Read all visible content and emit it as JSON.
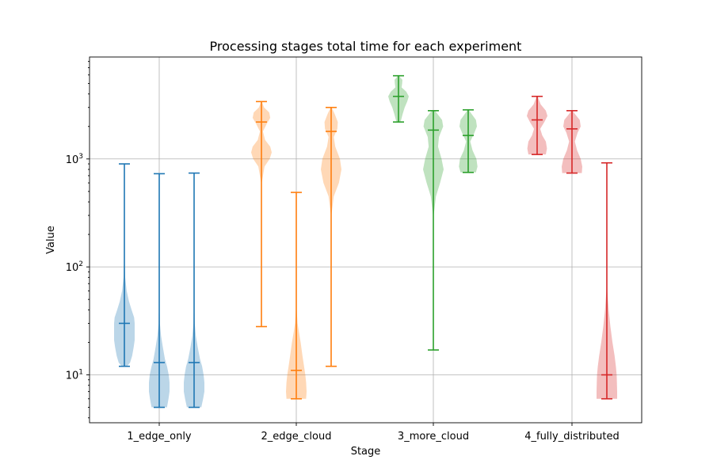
{
  "chart_data": {
    "type": "violin",
    "title": "Processing stages total time for each experiment",
    "xlabel": "Stage",
    "ylabel": "Value",
    "yscale": "log",
    "ylim": [
      3.6,
      8800
    ],
    "grid": true,
    "categories": [
      "1_edge_only",
      "2_edge_cloud",
      "3_more_cloud",
      "4_fully_distributed"
    ],
    "yticks": [
      {
        "value": 10,
        "base": "10",
        "exp": "1"
      },
      {
        "value": 100,
        "base": "10",
        "exp": "2"
      },
      {
        "value": 1000,
        "base": "10",
        "exp": "3"
      }
    ],
    "series": [
      {
        "color": "#1f77b4",
        "violins": [
          {
            "min": 12,
            "median": 30,
            "max": 900,
            "shape": [
              [
                12,
                0.25
              ],
              [
                13,
                0.55
              ],
              [
                15,
                0.75
              ],
              [
                18,
                0.9
              ],
              [
                21,
                1.0
              ],
              [
                25,
                1.0
              ],
              [
                30,
                1.0
              ],
              [
                34,
                0.95
              ],
              [
                40,
                0.7
              ],
              [
                48,
                0.45
              ],
              [
                60,
                0.22
              ],
              [
                80,
                0.08
              ],
              [
                120,
                0.02
              ],
              [
                300,
                0.005
              ],
              [
                900,
                0.0
              ]
            ]
          },
          {
            "min": 5,
            "median": 13,
            "max": 730,
            "shape": [
              [
                5,
                0.75
              ],
              [
                6,
                0.9
              ],
              [
                7,
                1.0
              ],
              [
                8.5,
                1.0
              ],
              [
                10,
                0.92
              ],
              [
                12,
                0.75
              ],
              [
                14,
                0.55
              ],
              [
                18,
                0.35
              ],
              [
                23,
                0.18
              ],
              [
                30,
                0.06
              ],
              [
                50,
                0.015
              ],
              [
                150,
                0.005
              ],
              [
                730,
                0.0
              ]
            ]
          },
          {
            "min": 5,
            "median": 13,
            "max": 740,
            "shape": [
              [
                5,
                0.7
              ],
              [
                6,
                0.88
              ],
              [
                7,
                1.0
              ],
              [
                8.5,
                1.0
              ],
              [
                10,
                0.92
              ],
              [
                12,
                0.78
              ],
              [
                14,
                0.58
              ],
              [
                18,
                0.35
              ],
              [
                23,
                0.17
              ],
              [
                30,
                0.06
              ],
              [
                50,
                0.015
              ],
              [
                150,
                0.005
              ],
              [
                740,
                0.0
              ]
            ]
          }
        ]
      },
      {
        "color": "#ff7f0e",
        "violins": [
          {
            "min": 28,
            "median": 2200,
            "max": 3400,
            "shape": [
              [
                28,
                0.0
              ],
              [
                200,
                0.005
              ],
              [
                600,
                0.03
              ],
              [
                850,
                0.3
              ],
              [
                1000,
                0.8
              ],
              [
                1150,
                1.0
              ],
              [
                1300,
                0.85
              ],
              [
                1500,
                0.35
              ],
              [
                1800,
                0.15
              ],
              [
                2100,
                0.5
              ],
              [
                2400,
                0.85
              ],
              [
                2700,
                0.75
              ],
              [
                3000,
                0.25
              ],
              [
                3400,
                0.03
              ]
            ]
          },
          {
            "min": 6,
            "median": 11,
            "max": 490,
            "shape": [
              [
                6,
                0.95
              ],
              [
                7,
                1.0
              ],
              [
                8.5,
                0.95
              ],
              [
                10,
                0.88
              ],
              [
                12,
                0.75
              ],
              [
                15,
                0.6
              ],
              [
                20,
                0.42
              ],
              [
                25,
                0.25
              ],
              [
                30,
                0.12
              ],
              [
                40,
                0.04
              ],
              [
                80,
                0.01
              ],
              [
                200,
                0.003
              ],
              [
                490,
                0.0
              ]
            ]
          },
          {
            "min": 12,
            "median": 1800,
            "max": 3000,
            "shape": [
              [
                12,
                0.0
              ],
              [
                100,
                0.005
              ],
              [
                300,
                0.02
              ],
              [
                450,
                0.25
              ],
              [
                600,
                0.75
              ],
              [
                800,
                1.0
              ],
              [
                1000,
                0.85
              ],
              [
                1300,
                0.4
              ],
              [
                1600,
                0.25
              ],
              [
                1900,
                0.6
              ],
              [
                2200,
                0.65
              ],
              [
                2600,
                0.35
              ],
              [
                3000,
                0.05
              ]
            ]
          }
        ]
      },
      {
        "color": "#2ca02c",
        "violins": [
          {
            "min": 2200,
            "median": 3800,
            "max": 5900,
            "shape": [
              [
                2200,
                0.2
              ],
              [
                2600,
                0.4
              ],
              [
                3000,
                0.6
              ],
              [
                3400,
                0.85
              ],
              [
                3800,
                1.0
              ],
              [
                4200,
                0.75
              ],
              [
                4600,
                0.3
              ],
              [
                5000,
                0.35
              ],
              [
                5400,
                0.38
              ],
              [
                5900,
                0.05
              ]
            ]
          },
          {
            "min": 17,
            "median": 1850,
            "max": 2800,
            "shape": [
              [
                17,
                0.0
              ],
              [
                100,
                0.005
              ],
              [
                300,
                0.03
              ],
              [
                450,
                0.25
              ],
              [
                600,
                0.65
              ],
              [
                800,
                1.0
              ],
              [
                1000,
                0.8
              ],
              [
                1300,
                0.45
              ],
              [
                1600,
                0.55
              ],
              [
                2000,
                0.95
              ],
              [
                2300,
                0.85
              ],
              [
                2800,
                0.15
              ]
            ]
          },
          {
            "min": 750,
            "median": 1650,
            "max": 2850,
            "shape": [
              [
                750,
                0.75
              ],
              [
                850,
                0.9
              ],
              [
                1000,
                0.8
              ],
              [
                1200,
                0.42
              ],
              [
                1450,
                0.2
              ],
              [
                1700,
                0.55
              ],
              [
                2000,
                0.85
              ],
              [
                2300,
                0.75
              ],
              [
                2600,
                0.35
              ],
              [
                2850,
                0.05
              ]
            ]
          }
        ]
      },
      {
        "color": "#d62728",
        "violins": [
          {
            "min": 1100,
            "median": 2300,
            "max": 3800,
            "shape": [
              [
                1100,
                0.85
              ],
              [
                1250,
                0.95
              ],
              [
                1450,
                0.85
              ],
              [
                1650,
                0.5
              ],
              [
                1900,
                0.3
              ],
              [
                2200,
                0.7
              ],
              [
                2500,
                1.0
              ],
              [
                2800,
                0.85
              ],
              [
                3200,
                0.35
              ],
              [
                3800,
                0.05
              ]
            ]
          },
          {
            "min": 740,
            "median": 1900,
            "max": 2800,
            "shape": [
              [
                740,
                0.95
              ],
              [
                850,
                1.0
              ],
              [
                1000,
                0.85
              ],
              [
                1200,
                0.5
              ],
              [
                1450,
                0.28
              ],
              [
                1750,
                0.55
              ],
              [
                2000,
                0.85
              ],
              [
                2300,
                0.75
              ],
              [
                2600,
                0.3
              ],
              [
                2800,
                0.05
              ]
            ]
          },
          {
            "min": 6,
            "median": 10,
            "max": 920,
            "shape": [
              [
                6,
                1.0
              ],
              [
                7,
                1.0
              ],
              [
                8.5,
                0.98
              ],
              [
                10,
                0.95
              ],
              [
                12,
                0.88
              ],
              [
                15,
                0.75
              ],
              [
                20,
                0.55
              ],
              [
                28,
                0.35
              ],
              [
                40,
                0.18
              ],
              [
                60,
                0.05
              ],
              [
                100,
                0.01
              ],
              [
                300,
                0.003
              ],
              [
                920,
                0.0
              ]
            ]
          }
        ]
      }
    ]
  }
}
